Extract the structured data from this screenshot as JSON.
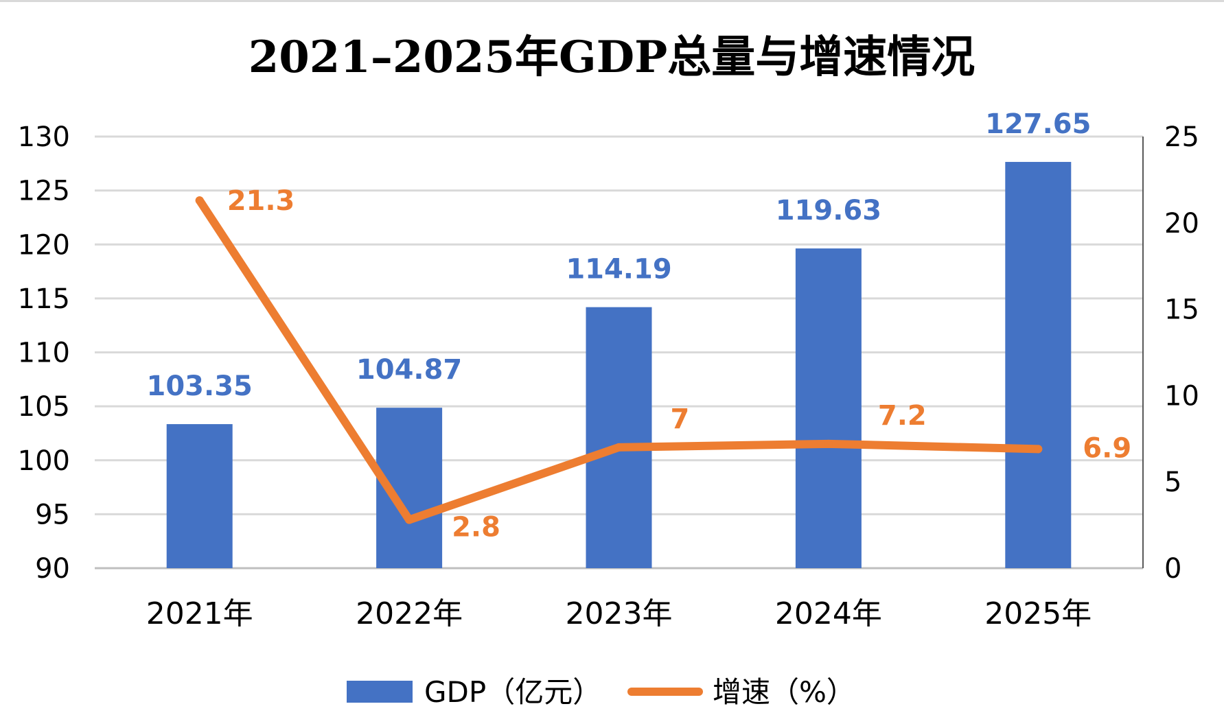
{
  "chart_data": {
    "type": "bar",
    "title": "2021–2025年GDP总量与增速情况",
    "categories": [
      "2021年",
      "2022年",
      "2023年",
      "2024年",
      "2025年"
    ],
    "series": [
      {
        "name": "GDP（亿元）",
        "type": "bar",
        "axis": "left",
        "values": [
          103.35,
          104.87,
          114.19,
          119.63,
          127.65
        ],
        "labels": [
          "103.35",
          "104.87",
          "114.19",
          "119.63",
          "127.65"
        ],
        "color": "#4472C4"
      },
      {
        "name": "增速（%）",
        "type": "line",
        "axis": "right",
        "values": [
          21.3,
          2.8,
          7,
          7.2,
          6.9
        ],
        "labels": [
          "21.3",
          "2.8",
          "7",
          "7.2",
          "6.9"
        ],
        "color": "#ED7D31"
      }
    ],
    "y_left": {
      "range": [
        90,
        130
      ],
      "ticks": [
        "90",
        "95",
        "100",
        "105",
        "110",
        "115",
        "120",
        "125",
        "130"
      ]
    },
    "y_right": {
      "range": [
        0,
        25
      ],
      "ticks": [
        "0",
        "5",
        "10",
        "15",
        "20",
        "25"
      ]
    },
    "grid": true,
    "legend": "bottom",
    "colors": {
      "bar": "#4472C4",
      "line": "#ED7D31",
      "grid": "#d9d9d9"
    }
  }
}
